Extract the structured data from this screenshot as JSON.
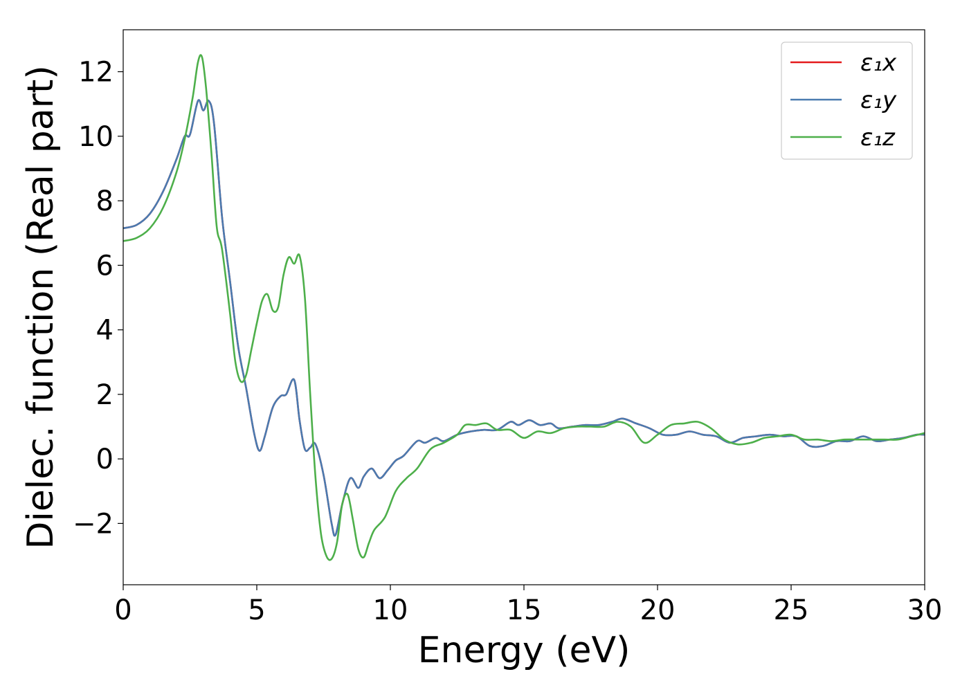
{
  "chart_data": {
    "type": "line",
    "title": "",
    "xlabel": "Energy (eV)",
    "ylabel": "Dielec. function (Real part)",
    "xlim": [
      0,
      30
    ],
    "ylim": [
      -3.9,
      13.3
    ],
    "xticks": [
      0,
      5,
      10,
      15,
      20,
      25,
      30
    ],
    "xtick_labels": [
      "0",
      "5",
      "10",
      "15",
      "20",
      "25",
      "30"
    ],
    "yticks": [
      -2,
      0,
      2,
      4,
      6,
      8,
      10,
      12
    ],
    "ytick_labels": [
      "−2",
      "0",
      "2",
      "4",
      "6",
      "8",
      "10",
      "12"
    ],
    "grid": false,
    "legend_position": "top-right",
    "series": [
      {
        "name": "ε₁x",
        "color": "#e41a1c",
        "x": [
          0,
          0.5,
          1.0,
          1.5,
          2.0,
          2.3,
          2.5,
          2.8,
          3.0,
          3.2,
          3.4,
          3.7,
          4.0,
          4.3,
          4.6,
          4.9,
          5.1,
          5.3,
          5.6,
          5.9,
          6.1,
          6.4,
          6.6,
          6.8,
          7.0,
          7.2,
          7.5,
          7.8,
          7.95,
          8.2,
          8.5,
          8.8,
          9.0,
          9.3,
          9.6,
          9.9,
          10.2,
          10.5,
          11.0,
          11.3,
          11.7,
          12.0,
          12.5,
          13.0,
          13.5,
          14.0,
          14.5,
          14.8,
          15.2,
          15.6,
          16.0,
          16.3,
          16.8,
          17.3,
          17.8,
          18.3,
          18.7,
          19.2,
          19.7,
          20.2,
          20.7,
          21.2,
          21.7,
          22.2,
          22.7,
          23.2,
          23.7,
          24.2,
          24.7,
          25.2,
          25.7,
          26.2,
          26.7,
          27.2,
          27.7,
          28.2,
          28.7,
          29.2,
          29.7,
          30.0
        ],
        "y": [
          7.15,
          7.25,
          7.6,
          8.3,
          9.3,
          10.0,
          10.05,
          11.1,
          10.8,
          11.1,
          10.4,
          7.5,
          5.5,
          3.5,
          2.2,
          0.8,
          0.25,
          0.7,
          1.6,
          1.95,
          2.0,
          2.45,
          1.2,
          0.3,
          0.35,
          0.45,
          -0.5,
          -2.0,
          -2.35,
          -1.4,
          -0.6,
          -0.9,
          -0.55,
          -0.3,
          -0.6,
          -0.35,
          -0.05,
          0.1,
          0.55,
          0.5,
          0.65,
          0.55,
          0.75,
          0.85,
          0.9,
          0.9,
          1.15,
          1.05,
          1.2,
          1.05,
          1.1,
          0.95,
          1.0,
          1.05,
          1.05,
          1.15,
          1.25,
          1.1,
          0.95,
          0.75,
          0.75,
          0.85,
          0.75,
          0.7,
          0.5,
          0.65,
          0.7,
          0.75,
          0.7,
          0.7,
          0.4,
          0.4,
          0.55,
          0.55,
          0.7,
          0.55,
          0.6,
          0.65,
          0.75,
          0.75
        ]
      },
      {
        "name": "ε₁y",
        "color": "#4a7bb0",
        "x": [
          0,
          0.5,
          1.0,
          1.5,
          2.0,
          2.3,
          2.5,
          2.8,
          3.0,
          3.2,
          3.4,
          3.7,
          4.0,
          4.3,
          4.6,
          4.9,
          5.1,
          5.3,
          5.6,
          5.9,
          6.1,
          6.4,
          6.6,
          6.8,
          7.0,
          7.2,
          7.5,
          7.8,
          7.95,
          8.2,
          8.5,
          8.8,
          9.0,
          9.3,
          9.6,
          9.9,
          10.2,
          10.5,
          11.0,
          11.3,
          11.7,
          12.0,
          12.5,
          13.0,
          13.5,
          14.0,
          14.5,
          14.8,
          15.2,
          15.6,
          16.0,
          16.3,
          16.8,
          17.3,
          17.8,
          18.3,
          18.7,
          19.2,
          19.7,
          20.2,
          20.7,
          21.2,
          21.7,
          22.2,
          22.7,
          23.2,
          23.7,
          24.2,
          24.7,
          25.2,
          25.7,
          26.2,
          26.7,
          27.2,
          27.7,
          28.2,
          28.7,
          29.2,
          29.7,
          30.0
        ],
        "y": [
          7.15,
          7.25,
          7.6,
          8.3,
          9.3,
          10.0,
          10.05,
          11.1,
          10.8,
          11.1,
          10.4,
          7.5,
          5.5,
          3.5,
          2.2,
          0.8,
          0.25,
          0.7,
          1.6,
          1.95,
          2.0,
          2.45,
          1.2,
          0.3,
          0.35,
          0.45,
          -0.5,
          -2.0,
          -2.35,
          -1.4,
          -0.6,
          -0.9,
          -0.55,
          -0.3,
          -0.6,
          -0.35,
          -0.05,
          0.1,
          0.55,
          0.5,
          0.65,
          0.55,
          0.75,
          0.85,
          0.9,
          0.9,
          1.15,
          1.05,
          1.2,
          1.05,
          1.1,
          0.95,
          1.0,
          1.05,
          1.05,
          1.15,
          1.25,
          1.1,
          0.95,
          0.75,
          0.75,
          0.85,
          0.75,
          0.7,
          0.5,
          0.65,
          0.7,
          0.75,
          0.7,
          0.7,
          0.4,
          0.4,
          0.55,
          0.55,
          0.7,
          0.55,
          0.6,
          0.65,
          0.75,
          0.75
        ]
      },
      {
        "name": "ε₁z",
        "color": "#4daf4a",
        "x": [
          0,
          0.5,
          1.0,
          1.5,
          2.0,
          2.3,
          2.6,
          2.8,
          2.95,
          3.1,
          3.3,
          3.5,
          3.7,
          4.0,
          4.2,
          4.4,
          4.6,
          4.8,
          5.0,
          5.2,
          5.4,
          5.6,
          5.8,
          6.0,
          6.2,
          6.4,
          6.6,
          6.8,
          7.0,
          7.2,
          7.4,
          7.6,
          7.8,
          8.0,
          8.2,
          8.4,
          8.6,
          8.8,
          9.0,
          9.2,
          9.4,
          9.8,
          10.2,
          10.6,
          11.0,
          11.5,
          12.0,
          12.5,
          12.8,
          13.2,
          13.6,
          14.0,
          14.5,
          15.0,
          15.5,
          16.0,
          16.5,
          17.0,
          17.5,
          18.0,
          18.5,
          19.0,
          19.5,
          20.0,
          20.5,
          21.0,
          21.5,
          22.0,
          22.5,
          23.0,
          23.5,
          24.0,
          24.5,
          25.0,
          25.5,
          26.0,
          26.5,
          27.0,
          27.5,
          28.0,
          28.5,
          29.0,
          29.5,
          30.0
        ],
        "y": [
          6.75,
          6.85,
          7.15,
          7.8,
          8.9,
          9.9,
          11.2,
          12.3,
          12.45,
          11.5,
          9.5,
          7.2,
          6.5,
          4.5,
          3.0,
          2.4,
          2.6,
          3.4,
          4.2,
          4.9,
          5.1,
          4.6,
          4.7,
          5.7,
          6.25,
          6.05,
          6.3,
          5.0,
          2.0,
          -0.6,
          -2.3,
          -3.0,
          -3.1,
          -2.6,
          -1.4,
          -1.1,
          -1.9,
          -2.8,
          -3.05,
          -2.6,
          -2.2,
          -1.8,
          -1.0,
          -0.6,
          -0.3,
          0.3,
          0.5,
          0.75,
          1.05,
          1.05,
          1.1,
          0.9,
          0.9,
          0.65,
          0.85,
          0.8,
          0.95,
          1.0,
          1.0,
          1.0,
          1.15,
          1.0,
          0.5,
          0.75,
          1.05,
          1.1,
          1.15,
          0.95,
          0.6,
          0.45,
          0.5,
          0.65,
          0.7,
          0.75,
          0.6,
          0.6,
          0.55,
          0.6,
          0.6,
          0.6,
          0.6,
          0.6,
          0.7,
          0.8
        ]
      }
    ]
  }
}
